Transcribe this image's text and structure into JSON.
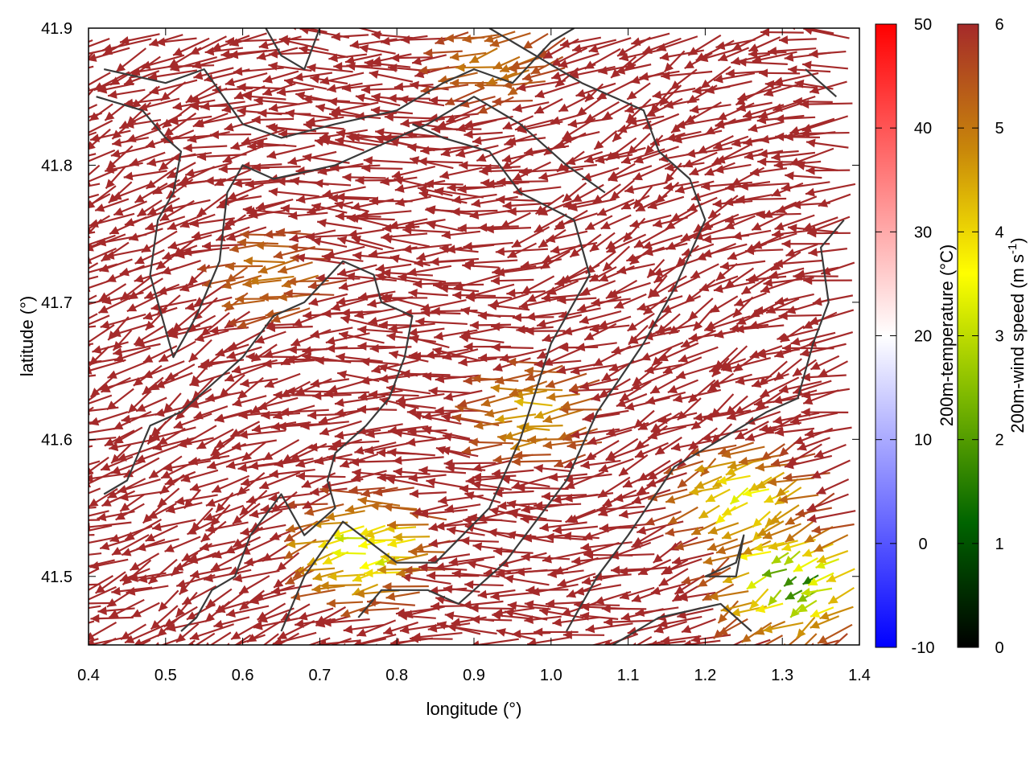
{
  "chart_data": {
    "type": "vector-field",
    "title": "",
    "xlabel": "longitude (°)",
    "ylabel": "latitude (°)",
    "xlim": [
      0.4,
      1.4
    ],
    "ylim": [
      41.45,
      41.9
    ],
    "xticks": [
      "0.4",
      "0.5",
      "0.6",
      "0.7",
      "0.8",
      "0.9",
      "1.0",
      "1.1",
      "1.2",
      "1.3",
      "1.4"
    ],
    "yticks": [
      "41.5",
      "41.6",
      "41.7",
      "41.8",
      "41.9"
    ],
    "grid": false,
    "legend": "none",
    "colorbars": [
      {
        "label": "200m-temperature (°C)",
        "range": [
          -10,
          50
        ],
        "ticks": [
          "-10",
          "0",
          "10",
          "20",
          "30",
          "40",
          "50"
        ],
        "colors": [
          "#0000ff",
          "#ffffff",
          "#ff0000"
        ]
      },
      {
        "label_main": "200m-wind speed (m s",
        "label_sup": "-1",
        "label_end": ")",
        "range": [
          0,
          6
        ],
        "ticks": [
          "0",
          "1",
          "2",
          "3",
          "4",
          "5",
          "6"
        ],
        "colors": [
          "#000000",
          "#006400",
          "#7cb800",
          "#ffff00",
          "#c8860a",
          "#a52a2a"
        ]
      }
    ],
    "wind_vectors": {
      "dominant_color": "#a52a2a",
      "dominant_speed": 6,
      "prevailing_direction": "north-westerly arrows (pointing up-left)",
      "weak_wind_regions": [
        {
          "lon": 1.33,
          "lat": 41.5,
          "speed": 2
        },
        {
          "lon": 1.27,
          "lat": 41.56,
          "speed": 3.5
        },
        {
          "lon": 1.0,
          "lat": 41.62,
          "speed": 4.5
        },
        {
          "lon": 0.78,
          "lat": 41.52,
          "speed": 3
        },
        {
          "lon": 0.66,
          "lat": 41.72,
          "speed": 5
        },
        {
          "lon": 0.95,
          "lat": 41.88,
          "speed": 5
        }
      ]
    },
    "contours": [
      [
        [
          0.42,
          41.87
        ],
        [
          0.5,
          41.86
        ],
        [
          0.55,
          41.87
        ],
        [
          0.6,
          41.83
        ],
        [
          0.65,
          41.82
        ],
        [
          0.72,
          41.83
        ],
        [
          0.8,
          41.84
        ],
        [
          0.86,
          41.86
        ],
        [
          0.9,
          41.87
        ],
        [
          0.95,
          41.86
        ],
        [
          1.0,
          41.89
        ],
        [
          1.03,
          41.9
        ]
      ],
      [
        [
          0.41,
          41.85
        ],
        [
          0.47,
          41.84
        ],
        [
          0.5,
          41.82
        ],
        [
          0.52,
          41.81
        ],
        [
          0.51,
          41.78
        ],
        [
          0.49,
          41.76
        ],
        [
          0.48,
          41.72
        ],
        [
          0.5,
          41.68
        ],
        [
          0.51,
          41.66
        ],
        [
          0.54,
          41.69
        ],
        [
          0.57,
          41.73
        ],
        [
          0.58,
          41.78
        ],
        [
          0.6,
          41.8
        ],
        [
          0.64,
          41.79
        ],
        [
          0.72,
          41.8
        ],
        [
          0.84,
          41.83
        ],
        [
          0.9,
          41.85
        ],
        [
          0.96,
          41.83
        ],
        [
          1.02,
          41.8
        ],
        [
          1.07,
          41.78
        ]
      ],
      [
        [
          0.63,
          41.9
        ],
        [
          0.65,
          41.88
        ],
        [
          0.68,
          41.87
        ],
        [
          0.7,
          41.9
        ]
      ],
      [
        [
          0.42,
          41.56
        ],
        [
          0.45,
          41.57
        ],
        [
          0.48,
          41.61
        ],
        [
          0.52,
          41.62
        ],
        [
          0.56,
          41.64
        ],
        [
          0.6,
          41.66
        ],
        [
          0.64,
          41.69
        ],
        [
          0.68,
          41.7
        ],
        [
          0.73,
          41.73
        ],
        [
          0.77,
          41.72
        ],
        [
          0.78,
          41.7
        ],
        [
          0.82,
          41.69
        ],
        [
          0.81,
          41.66
        ],
        [
          0.79,
          41.63
        ],
        [
          0.76,
          41.61
        ],
        [
          0.72,
          41.59
        ],
        [
          0.71,
          41.57
        ],
        [
          0.72,
          41.55
        ],
        [
          0.68,
          41.53
        ],
        [
          0.65,
          41.56
        ],
        [
          0.61,
          41.53
        ],
        [
          0.59,
          41.5
        ],
        [
          0.56,
          41.49
        ],
        [
          0.54,
          41.47
        ],
        [
          0.52,
          41.46
        ]
      ],
      [
        [
          0.65,
          41.46
        ],
        [
          0.68,
          41.5
        ],
        [
          0.73,
          41.54
        ],
        [
          0.8,
          41.51
        ],
        [
          0.85,
          41.51
        ],
        [
          0.92,
          41.55
        ],
        [
          0.96,
          41.6
        ],
        [
          1.0,
          41.67
        ],
        [
          1.05,
          41.72
        ],
        [
          1.03,
          41.76
        ],
        [
          0.96,
          41.78
        ],
        [
          0.92,
          41.81
        ],
        [
          0.86,
          41.82
        ],
        [
          0.82,
          41.83
        ]
      ],
      [
        [
          0.75,
          41.47
        ],
        [
          0.78,
          41.49
        ],
        [
          0.84,
          41.49
        ],
        [
          0.88,
          41.48
        ],
        [
          0.94,
          41.51
        ],
        [
          0.98,
          41.54
        ],
        [
          1.02,
          41.57
        ],
        [
          1.06,
          41.62
        ],
        [
          1.12,
          41.67
        ],
        [
          1.16,
          41.71
        ],
        [
          1.2,
          41.76
        ],
        [
          1.18,
          41.79
        ],
        [
          1.14,
          41.81
        ],
        [
          1.12,
          41.84
        ],
        [
          1.08,
          41.85
        ],
        [
          1.04,
          41.86
        ],
        [
          0.98,
          41.88
        ],
        [
          0.92,
          41.9
        ]
      ],
      [
        [
          1.02,
          41.46
        ],
        [
          1.06,
          41.5
        ],
        [
          1.1,
          41.53
        ],
        [
          1.16,
          41.58
        ],
        [
          1.22,
          41.6
        ],
        [
          1.28,
          41.62
        ],
        [
          1.32,
          41.63
        ],
        [
          1.34,
          41.67
        ],
        [
          1.36,
          41.7
        ],
        [
          1.35,
          41.74
        ],
        [
          1.38,
          41.76
        ]
      ],
      [
        [
          1.2,
          41.5
        ],
        [
          1.24,
          41.51
        ],
        [
          1.25,
          41.53
        ],
        [
          1.24,
          41.5
        ],
        [
          1.2,
          41.5
        ]
      ],
      [
        [
          1.08,
          41.45
        ],
        [
          1.14,
          41.47
        ],
        [
          1.22,
          41.48
        ],
        [
          1.26,
          41.46
        ]
      ],
      [
        [
          1.33,
          41.87
        ],
        [
          1.35,
          41.86
        ],
        [
          1.37,
          41.85
        ]
      ]
    ]
  }
}
